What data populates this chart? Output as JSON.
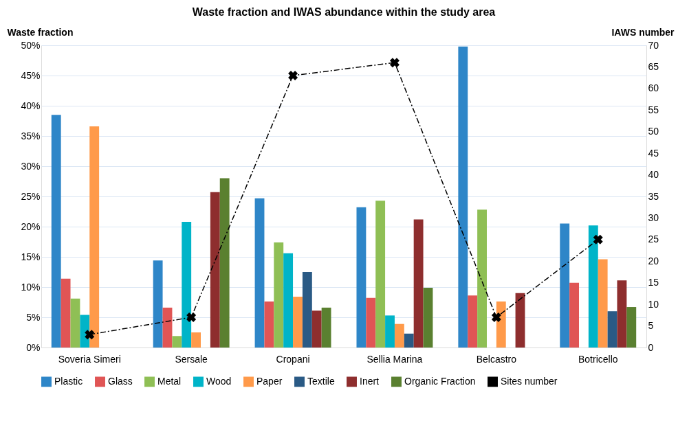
{
  "chart_data": {
    "type": "bar",
    "title": "Waste fraction and IWAS abundance within the study area",
    "ylabel": "Waste fraction",
    "y2label": "IAWS number",
    "categories": [
      "Soveria Simeri",
      "Sersale",
      "Cropani",
      "Sellia Marina",
      "Belcastro",
      "Botricello"
    ],
    "series": [
      {
        "name": "Plastic",
        "color": "#2e86c8",
        "values": [
          38.5,
          14.4,
          24.7,
          23.2,
          49.8,
          20.5
        ]
      },
      {
        "name": "Glass",
        "color": "#e05555",
        "values": [
          11.4,
          6.6,
          7.6,
          8.2,
          8.6,
          10.7
        ]
      },
      {
        "name": "Metal",
        "color": "#8fbf55",
        "values": [
          8.1,
          1.9,
          17.4,
          24.3,
          22.8,
          null
        ]
      },
      {
        "name": "Wood",
        "color": "#00b4c8",
        "values": [
          5.4,
          20.8,
          15.6,
          5.3,
          null,
          20.2
        ]
      },
      {
        "name": "Paper",
        "color": "#ff9a4a",
        "values": [
          36.6,
          2.5,
          8.4,
          3.9,
          7.6,
          14.6
        ]
      },
      {
        "name": "Textile",
        "color": "#2a5a85",
        "values": [
          null,
          null,
          12.5,
          2.3,
          null,
          6.0
        ]
      },
      {
        "name": "Inert",
        "color": "#8e2e2e",
        "values": [
          null,
          25.7,
          6.1,
          21.2,
          9.0,
          11.1
        ]
      },
      {
        "name": "Organic Fraction",
        "color": "#5a8030",
        "values": [
          null,
          28.0,
          6.6,
          9.9,
          null,
          6.7
        ]
      },
      {
        "name": "Sites number",
        "type": "line",
        "axis": "y2",
        "color": "#000000",
        "marker": "cross",
        "line_style": "dashed",
        "values": [
          3,
          7,
          63,
          66,
          7,
          25
        ]
      }
    ],
    "ylim": [
      0,
      50
    ],
    "yticks": [
      {
        "value": 0,
        "label": "0%"
      },
      {
        "value": 5,
        "label": "5%"
      },
      {
        "value": 10,
        "label": "10%"
      },
      {
        "value": 15,
        "label": "15%"
      },
      {
        "value": 20,
        "label": "20%"
      },
      {
        "value": 25,
        "label": "25%"
      },
      {
        "value": 30,
        "label": "30%"
      },
      {
        "value": 35,
        "label": "35%"
      },
      {
        "value": 40,
        "label": "40%"
      },
      {
        "value": 45,
        "label": "45%"
      },
      {
        "value": 50,
        "label": "50%"
      }
    ],
    "y2lim": [
      0,
      70
    ],
    "y2ticks": [
      0,
      5,
      10,
      15,
      20,
      25,
      30,
      35,
      40,
      45,
      50,
      55,
      60,
      65,
      70
    ],
    "grid": "y",
    "legend": "bottom"
  }
}
